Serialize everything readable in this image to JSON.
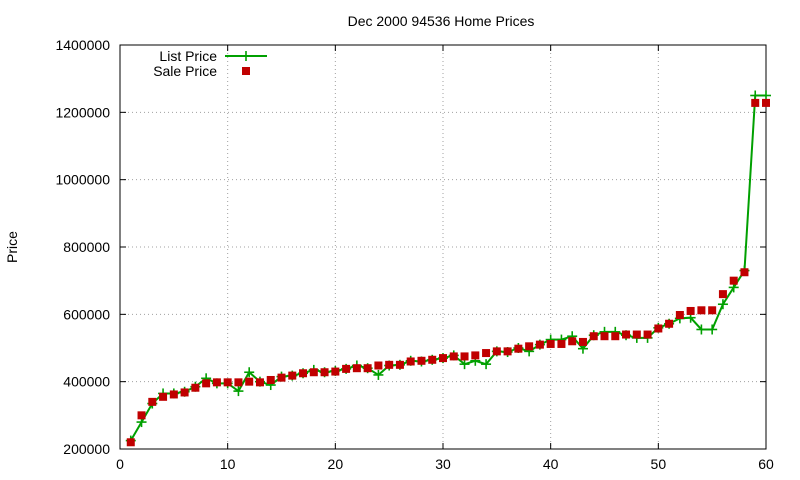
{
  "chart_data": {
    "type": "line",
    "title": "Dec 2000 94536 Home Prices",
    "xlabel": "",
    "ylabel": "Price",
    "xlim": [
      0,
      60
    ],
    "ylim": [
      200000,
      1400000
    ],
    "xticks": [
      0,
      10,
      20,
      30,
      40,
      50,
      60
    ],
    "yticks": [
      200000,
      400000,
      600000,
      800000,
      1000000,
      1200000,
      1400000
    ],
    "xtick_labels": [
      "0",
      "10",
      "20",
      "30",
      "40",
      "50",
      "60"
    ],
    "ytick_labels": [
      "200000",
      "400000",
      "600000",
      "800000",
      "1000000",
      "1200000",
      "1400000"
    ],
    "grid": true,
    "legend_position": "top-left",
    "x": [
      1,
      2,
      3,
      4,
      5,
      6,
      7,
      8,
      9,
      10,
      11,
      12,
      13,
      14,
      15,
      16,
      17,
      18,
      19,
      20,
      21,
      22,
      23,
      24,
      25,
      26,
      27,
      28,
      29,
      30,
      31,
      32,
      33,
      34,
      35,
      36,
      37,
      38,
      39,
      40,
      41,
      42,
      43,
      44,
      45,
      46,
      47,
      48,
      49,
      50,
      51,
      52,
      53,
      54,
      55,
      56,
      57,
      58,
      59,
      60
    ],
    "series": [
      {
        "name": "List Price",
        "style": "linespoints",
        "color": "#00a000",
        "marker": "plus",
        "values": [
          225000,
          280000,
          335000,
          365000,
          365000,
          370000,
          385000,
          410000,
          395000,
          395000,
          372000,
          428000,
          400000,
          390000,
          415000,
          418000,
          425000,
          435000,
          428000,
          432000,
          438000,
          448000,
          440000,
          420000,
          448000,
          450000,
          462000,
          460000,
          465000,
          470000,
          478000,
          452000,
          462000,
          452000,
          490000,
          488000,
          500000,
          490000,
          510000,
          525000,
          525000,
          535000,
          498000,
          538000,
          548000,
          548000,
          538000,
          530000,
          530000,
          560000,
          572000,
          588000,
          590000,
          555000,
          555000,
          630000,
          680000,
          730000,
          1250000,
          1250000
        ]
      },
      {
        "name": "Sale Price",
        "style": "points",
        "color": "#c00000",
        "marker": "square",
        "values": [
          220000,
          300000,
          340000,
          355000,
          362000,
          368000,
          382000,
          395000,
          398000,
          398000,
          398000,
          400000,
          398000,
          405000,
          412000,
          418000,
          425000,
          428000,
          428000,
          430000,
          438000,
          440000,
          440000,
          448000,
          450000,
          450000,
          460000,
          462000,
          465000,
          470000,
          475000,
          475000,
          478000,
          485000,
          490000,
          490000,
          498000,
          505000,
          510000,
          512000,
          512000,
          520000,
          518000,
          535000,
          535000,
          535000,
          540000,
          540000,
          540000,
          558000,
          572000,
          598000,
          610000,
          612000,
          612000,
          660000,
          700000,
          725000,
          1228000,
          1228000
        ]
      }
    ]
  }
}
